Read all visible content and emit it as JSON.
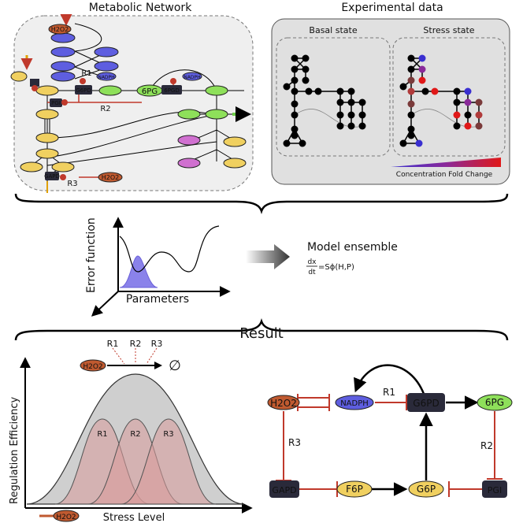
{
  "top": {
    "left_title": "Metabolic Network",
    "right_title": "Experimental data",
    "basal_label": "Basal state",
    "stress_label": "Stress state",
    "colorbar_label": "Concentration Fold Change",
    "network_labels": {
      "h2o2": "H2O2",
      "r1": "R1",
      "r2": "R2",
      "r3": "R3",
      "g6pd": "G6PD",
      "nadph": "NADPH",
      "sixpg": "6PG",
      "sixpgd": "6PGD",
      "nadph2": "NADPH",
      "pgi": "PGI",
      "gapd": "GAPD"
    }
  },
  "middle": {
    "error_axis": "Error function",
    "param_axis": "Parameters",
    "ensemble_label": "Model ensemble",
    "eq_dx": "dx",
    "eq_dt": "dt",
    "eq_rhs": "=Sϕ(H,P)"
  },
  "result": {
    "title": "Result",
    "y_axis": "Regulation Efficiency",
    "x_axis": "Stress Level",
    "h2o2": "H2O2",
    "empty": "∅",
    "r_labels": [
      "R1",
      "R2",
      "R3"
    ]
  },
  "pathway": {
    "h2o2": "H2O2",
    "nadph": "NADPH",
    "g6pd": "G6PD",
    "sixpg": "6PG",
    "gapd": "GAPD",
    "f6p": "F6P",
    "g6p": "G6P",
    "pgi": "PGI",
    "r1": "R1",
    "r2": "R2",
    "r3": "R3"
  }
}
